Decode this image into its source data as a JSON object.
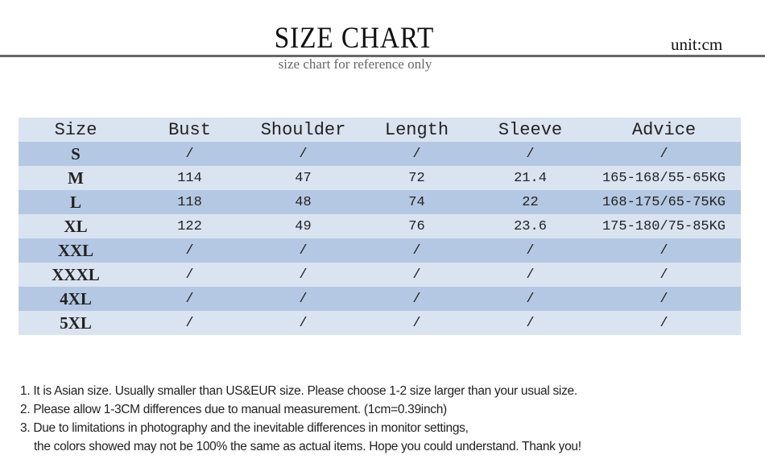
{
  "header": {
    "title": "SIZE CHART",
    "unit": "unit:cm",
    "subtitle": "size chart for reference only"
  },
  "colors": {
    "row_light": "#dae3f0",
    "row_dark": "#b5c8e3",
    "rule": "#666666"
  },
  "table": {
    "columns": [
      "Size",
      "Bust",
      "Shoulder",
      "Length",
      "Sleeve",
      "Advice"
    ],
    "rows": [
      [
        "S",
        "/",
        "/",
        "/",
        "/",
        "/"
      ],
      [
        "M",
        "114",
        "47",
        "72",
        "21.4",
        "165-168/55-65KG"
      ],
      [
        "L",
        "118",
        "48",
        "74",
        "22",
        "168-175/65-75KG"
      ],
      [
        "XL",
        "122",
        "49",
        "76",
        "23.6",
        "175-180/75-85KG"
      ],
      [
        "XXL",
        "/",
        "/",
        "/",
        "/",
        "/"
      ],
      [
        "XXXL",
        "/",
        "/",
        "/",
        "/",
        "/"
      ],
      [
        "4XL",
        "/",
        "/",
        "/",
        "/",
        "/"
      ],
      [
        "5XL",
        "/",
        "/",
        "/",
        "/",
        "/"
      ]
    ]
  },
  "notes": [
    "1. It is Asian size.  Usually smaller than US&EUR size. Please choose 1-2 size larger than your usual size.",
    "2. Please allow 1-3CM differences due to manual measurement.   (1cm=0.39inch)",
    "3. Due to limitations in photography and the inevitable differences in monitor settings,",
    "the colors showed may not be 100% the same as actual items. Hope you could understand. Thank you!"
  ]
}
